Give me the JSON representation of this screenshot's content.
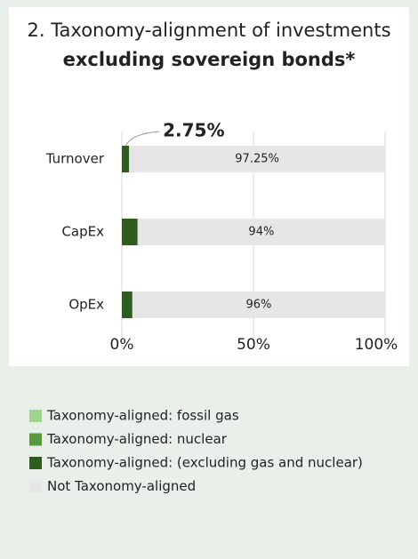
{
  "chart_data": {
    "type": "stacked-bar-horizontal",
    "title": {
      "text": "2. Taxonomy-alignment of investments",
      "bold": "excluding sovereign bonds*"
    },
    "categories": [
      "Turnover",
      "CapEx",
      "OpEx"
    ],
    "series": [
      {
        "name": "Taxonomy-aligned: fossil gas",
        "color": "#9fd48e",
        "values": [
          0,
          0,
          0
        ]
      },
      {
        "name": "Taxonomy-aligned: nuclear",
        "color": "#5a9a3e",
        "values": [
          0,
          0,
          0
        ]
      },
      {
        "name": "Taxonomy-aligned: (excluding gas and nuclear)",
        "color": "#2f5d20",
        "values": [
          2.75,
          6,
          4
        ],
        "value_labels": [
          "2.75%",
          null,
          null
        ]
      },
      {
        "name": "Not Taxonomy-aligned",
        "color": "#e6e6e6",
        "values": [
          97.25,
          94,
          96
        ],
        "value_labels": [
          "97.25%",
          "94%",
          "96%"
        ]
      }
    ],
    "xlim": [
      0,
      100
    ],
    "xticks": [
      {
        "value": 0,
        "label": "0%"
      },
      {
        "value": 50,
        "label": "50%"
      },
      {
        "value": 100,
        "label": "100%"
      }
    ],
    "grid": true
  }
}
